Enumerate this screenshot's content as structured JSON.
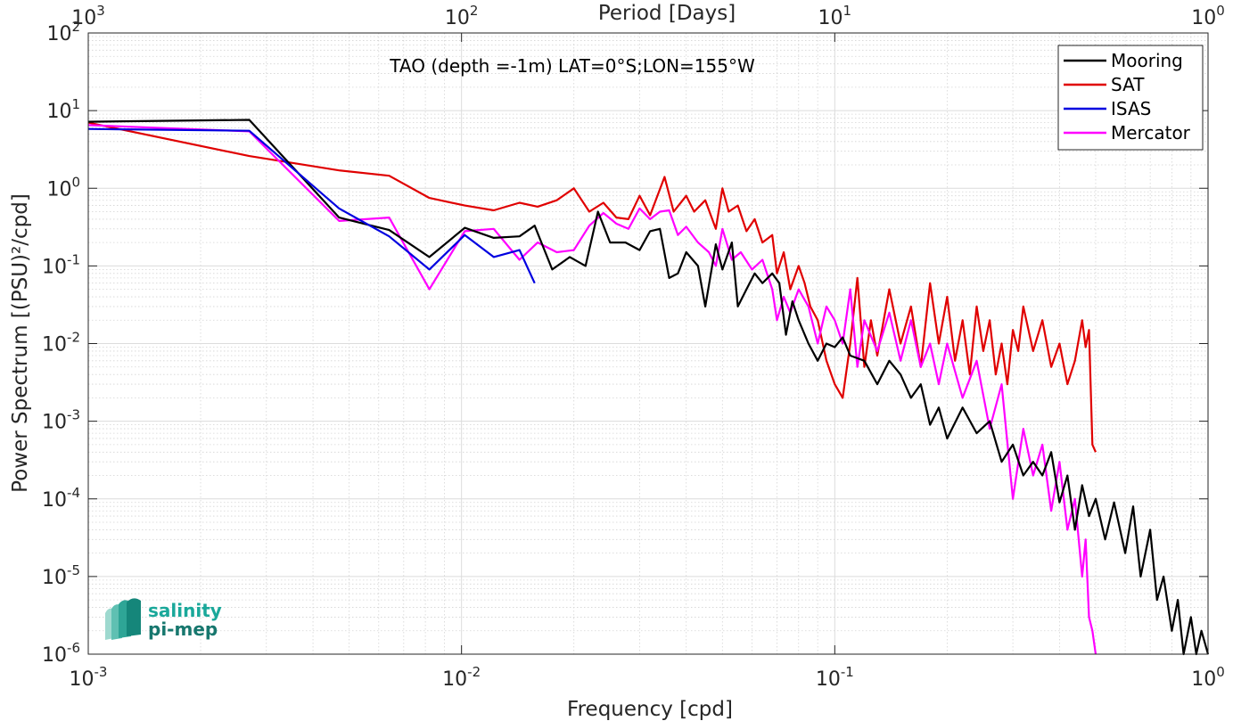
{
  "chart_data": {
    "type": "line",
    "title": "TAO (depth =-1m) LAT=0°S;LON=155°W",
    "xlabel": "Frequency [cpd]",
    "ylabel": "Power Spectrum [(PSU)²/cpd]",
    "top_xlabel": "Period [Days]",
    "x_scale": "log",
    "y_scale": "log",
    "xlim": [
      0.001,
      1
    ],
    "ylim": [
      1e-06,
      100
    ],
    "grid": true,
    "legend_position": "top-right",
    "x_tick_labels": [
      {
        "base": "10",
        "exp": "-3"
      },
      {
        "base": "10",
        "exp": "-2"
      },
      {
        "base": "10",
        "exp": "-1"
      },
      {
        "base": "10",
        "exp": "0"
      }
    ],
    "top_tick_labels": [
      {
        "base": "10",
        "exp": "3"
      },
      {
        "base": "10",
        "exp": "2"
      },
      {
        "base": "10",
        "exp": "1"
      },
      {
        "base": "10",
        "exp": "0"
      }
    ],
    "y_tick_labels": [
      {
        "base": "10",
        "exp": "-6"
      },
      {
        "base": "10",
        "exp": "-5"
      },
      {
        "base": "10",
        "exp": "-4"
      },
      {
        "base": "10",
        "exp": "-3"
      },
      {
        "base": "10",
        "exp": "-2"
      },
      {
        "base": "10",
        "exp": "-1"
      },
      {
        "base": "10",
        "exp": "0"
      },
      {
        "base": "10",
        "exp": "1"
      },
      {
        "base": "10",
        "exp": "2"
      }
    ],
    "series": [
      {
        "name": "Mooring",
        "color": "#000000",
        "points": [
          [
            0.001,
            7.2
          ],
          [
            0.0027,
            7.6
          ],
          [
            0.0047,
            0.42
          ],
          [
            0.0064,
            0.29
          ],
          [
            0.0082,
            0.13
          ],
          [
            0.0102,
            0.31
          ],
          [
            0.0122,
            0.23
          ],
          [
            0.0143,
            0.24
          ],
          [
            0.0157,
            0.33
          ],
          [
            0.0175,
            0.09
          ],
          [
            0.0195,
            0.13
          ],
          [
            0.0215,
            0.1
          ],
          [
            0.0232,
            0.5
          ],
          [
            0.025,
            0.2
          ],
          [
            0.0275,
            0.2
          ],
          [
            0.03,
            0.16
          ],
          [
            0.032,
            0.28
          ],
          [
            0.034,
            0.3
          ],
          [
            0.036,
            0.07
          ],
          [
            0.038,
            0.08
          ],
          [
            0.04,
            0.15
          ],
          [
            0.043,
            0.1
          ],
          [
            0.045,
            0.03
          ],
          [
            0.048,
            0.19
          ],
          [
            0.05,
            0.09
          ],
          [
            0.053,
            0.2
          ],
          [
            0.055,
            0.03
          ],
          [
            0.058,
            0.05
          ],
          [
            0.061,
            0.08
          ],
          [
            0.064,
            0.06
          ],
          [
            0.068,
            0.08
          ],
          [
            0.071,
            0.06
          ],
          [
            0.074,
            0.013
          ],
          [
            0.077,
            0.035
          ],
          [
            0.08,
            0.02
          ],
          [
            0.085,
            0.01
          ],
          [
            0.09,
            0.006
          ],
          [
            0.095,
            0.01
          ],
          [
            0.1,
            0.009
          ],
          [
            0.105,
            0.012
          ],
          [
            0.11,
            0.007
          ],
          [
            0.12,
            0.006
          ],
          [
            0.13,
            0.003
          ],
          [
            0.14,
            0.006
          ],
          [
            0.15,
            0.004
          ],
          [
            0.16,
            0.002
          ],
          [
            0.17,
            0.003
          ],
          [
            0.18,
            0.0009
          ],
          [
            0.19,
            0.0015
          ],
          [
            0.2,
            0.0006
          ],
          [
            0.22,
            0.0015
          ],
          [
            0.24,
            0.0007
          ],
          [
            0.26,
            0.001
          ],
          [
            0.28,
            0.0003
          ],
          [
            0.3,
            0.0005
          ],
          [
            0.32,
            0.0002
          ],
          [
            0.34,
            0.0003
          ],
          [
            0.36,
            0.0002
          ],
          [
            0.38,
            0.0004
          ],
          [
            0.4,
            9e-05
          ],
          [
            0.42,
            0.0002
          ],
          [
            0.44,
            4e-05
          ],
          [
            0.46,
            0.00015
          ],
          [
            0.48,
            6e-05
          ],
          [
            0.5,
            0.0001
          ],
          [
            0.53,
            3e-05
          ],
          [
            0.56,
            9e-05
          ],
          [
            0.6,
            2e-05
          ],
          [
            0.63,
            8e-05
          ],
          [
            0.66,
            1e-05
          ],
          [
            0.7,
            4e-05
          ],
          [
            0.73,
            5e-06
          ],
          [
            0.76,
            1e-05
          ],
          [
            0.8,
            2e-06
          ],
          [
            0.83,
            5e-06
          ],
          [
            0.86,
            1e-06
          ],
          [
            0.9,
            3e-06
          ],
          [
            0.93,
            1e-06
          ],
          [
            0.96,
            2e-06
          ],
          [
            1.0,
            1e-06
          ]
        ]
      },
      {
        "name": "SAT",
        "color": "#e00000",
        "points": [
          [
            0.001,
            7.0
          ],
          [
            0.0027,
            2.6
          ],
          [
            0.0047,
            1.7
          ],
          [
            0.0064,
            1.45
          ],
          [
            0.0082,
            0.75
          ],
          [
            0.0102,
            0.6
          ],
          [
            0.0122,
            0.52
          ],
          [
            0.0143,
            0.65
          ],
          [
            0.016,
            0.58
          ],
          [
            0.018,
            0.7
          ],
          [
            0.02,
            1.0
          ],
          [
            0.022,
            0.5
          ],
          [
            0.024,
            0.65
          ],
          [
            0.026,
            0.42
          ],
          [
            0.028,
            0.4
          ],
          [
            0.03,
            0.8
          ],
          [
            0.032,
            0.45
          ],
          [
            0.035,
            1.4
          ],
          [
            0.037,
            0.5
          ],
          [
            0.04,
            0.8
          ],
          [
            0.042,
            0.5
          ],
          [
            0.045,
            0.7
          ],
          [
            0.048,
            0.3
          ],
          [
            0.05,
            1.0
          ],
          [
            0.052,
            0.5
          ],
          [
            0.055,
            0.6
          ],
          [
            0.058,
            0.28
          ],
          [
            0.061,
            0.4
          ],
          [
            0.064,
            0.2
          ],
          [
            0.068,
            0.25
          ],
          [
            0.07,
            0.08
          ],
          [
            0.073,
            0.15
          ],
          [
            0.076,
            0.05
          ],
          [
            0.08,
            0.1
          ],
          [
            0.083,
            0.06
          ],
          [
            0.086,
            0.03
          ],
          [
            0.09,
            0.02
          ],
          [
            0.095,
            0.006
          ],
          [
            0.1,
            0.003
          ],
          [
            0.105,
            0.002
          ],
          [
            0.11,
            0.01
          ],
          [
            0.115,
            0.07
          ],
          [
            0.12,
            0.005
          ],
          [
            0.125,
            0.02
          ],
          [
            0.13,
            0.007
          ],
          [
            0.14,
            0.05
          ],
          [
            0.15,
            0.01
          ],
          [
            0.16,
            0.03
          ],
          [
            0.17,
            0.005
          ],
          [
            0.18,
            0.06
          ],
          [
            0.19,
            0.01
          ],
          [
            0.2,
            0.04
          ],
          [
            0.21,
            0.006
          ],
          [
            0.22,
            0.02
          ],
          [
            0.23,
            0.004
          ],
          [
            0.24,
            0.03
          ],
          [
            0.25,
            0.008
          ],
          [
            0.26,
            0.02
          ],
          [
            0.27,
            0.004
          ],
          [
            0.28,
            0.01
          ],
          [
            0.29,
            0.003
          ],
          [
            0.3,
            0.015
          ],
          [
            0.31,
            0.008
          ],
          [
            0.32,
            0.03
          ],
          [
            0.34,
            0.008
          ],
          [
            0.36,
            0.02
          ],
          [
            0.38,
            0.005
          ],
          [
            0.4,
            0.01
          ],
          [
            0.42,
            0.003
          ],
          [
            0.44,
            0.006
          ],
          [
            0.46,
            0.02
          ],
          [
            0.47,
            0.009
          ],
          [
            0.48,
            0.015
          ],
          [
            0.49,
            0.0005
          ],
          [
            0.5,
            0.0004
          ]
        ]
      },
      {
        "name": "ISAS",
        "color": "#0000e0",
        "points": [
          [
            0.001,
            5.8
          ],
          [
            0.0027,
            5.5
          ],
          [
            0.0047,
            0.55
          ],
          [
            0.0064,
            0.24
          ],
          [
            0.0082,
            0.09
          ],
          [
            0.0102,
            0.25
          ],
          [
            0.0122,
            0.13
          ],
          [
            0.0143,
            0.16
          ],
          [
            0.0157,
            0.06
          ]
        ]
      },
      {
        "name": "Mercator",
        "color": "#ff00ff",
        "points": [
          [
            0.001,
            6.5
          ],
          [
            0.0027,
            5.4
          ],
          [
            0.0047,
            0.38
          ],
          [
            0.0064,
            0.42
          ],
          [
            0.0082,
            0.05
          ],
          [
            0.0102,
            0.28
          ],
          [
            0.0122,
            0.3
          ],
          [
            0.0143,
            0.12
          ],
          [
            0.016,
            0.2
          ],
          [
            0.018,
            0.15
          ],
          [
            0.02,
            0.16
          ],
          [
            0.022,
            0.33
          ],
          [
            0.024,
            0.48
          ],
          [
            0.026,
            0.35
          ],
          [
            0.028,
            0.3
          ],
          [
            0.03,
            0.55
          ],
          [
            0.032,
            0.4
          ],
          [
            0.034,
            0.5
          ],
          [
            0.036,
            0.52
          ],
          [
            0.038,
            0.25
          ],
          [
            0.04,
            0.32
          ],
          [
            0.043,
            0.2
          ],
          [
            0.046,
            0.15
          ],
          [
            0.048,
            0.1
          ],
          [
            0.05,
            0.3
          ],
          [
            0.053,
            0.12
          ],
          [
            0.056,
            0.15
          ],
          [
            0.06,
            0.09
          ],
          [
            0.064,
            0.12
          ],
          [
            0.068,
            0.05
          ],
          [
            0.07,
            0.02
          ],
          [
            0.073,
            0.04
          ],
          [
            0.076,
            0.025
          ],
          [
            0.08,
            0.05
          ],
          [
            0.085,
            0.03
          ],
          [
            0.09,
            0.01
          ],
          [
            0.095,
            0.03
          ],
          [
            0.1,
            0.02
          ],
          [
            0.105,
            0.01
          ],
          [
            0.11,
            0.05
          ],
          [
            0.115,
            0.005
          ],
          [
            0.12,
            0.02
          ],
          [
            0.13,
            0.008
          ],
          [
            0.14,
            0.025
          ],
          [
            0.15,
            0.006
          ],
          [
            0.16,
            0.02
          ],
          [
            0.17,
            0.005
          ],
          [
            0.18,
            0.01
          ],
          [
            0.19,
            0.003
          ],
          [
            0.2,
            0.01
          ],
          [
            0.22,
            0.002
          ],
          [
            0.24,
            0.006
          ],
          [
            0.26,
            0.0008
          ],
          [
            0.28,
            0.003
          ],
          [
            0.3,
            0.0001
          ],
          [
            0.32,
            0.0008
          ],
          [
            0.34,
            0.0002
          ],
          [
            0.36,
            0.0005
          ],
          [
            0.38,
            7e-05
          ],
          [
            0.4,
            0.0003
          ],
          [
            0.42,
            4e-05
          ],
          [
            0.44,
            0.0001
          ],
          [
            0.46,
            1e-05
          ],
          [
            0.47,
            3e-05
          ],
          [
            0.48,
            3e-06
          ],
          [
            0.49,
            2e-06
          ],
          [
            0.5,
            1e-06
          ]
        ]
      }
    ]
  },
  "logo": {
    "line1": "salinity",
    "line2": "pi-mep",
    "color_main": "#1aa89a",
    "color_dark": "#17776e"
  }
}
